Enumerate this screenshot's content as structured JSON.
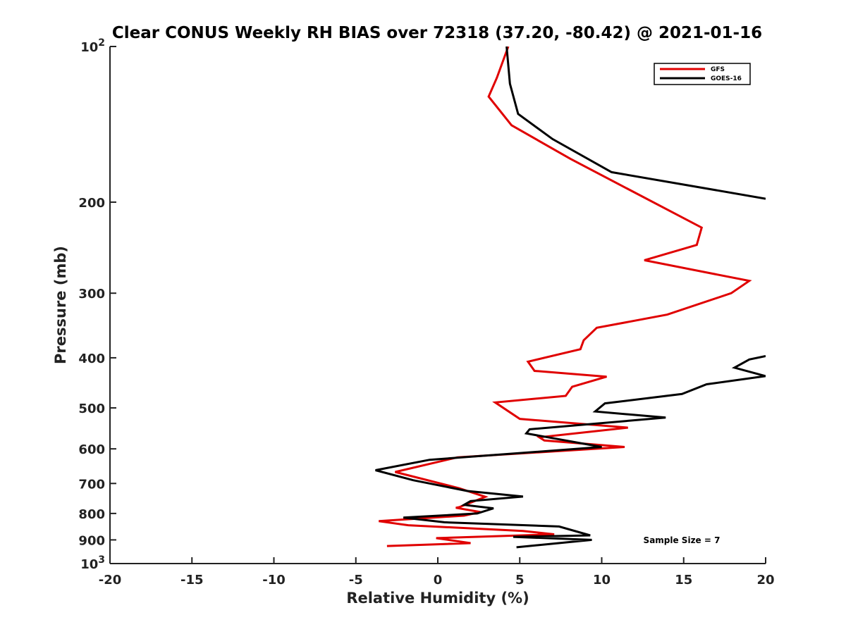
{
  "chart_data": {
    "type": "line",
    "title": "Clear CONUS Weekly RH BIAS over 72318 (37.20, -80.42) @ 2021-01-16",
    "xlabel": "Relative Humidity (%)",
    "ylabel": "Pressure (mb)",
    "xlim": [
      -20,
      20
    ],
    "ylim": [
      100,
      1000
    ],
    "y_scale": "log",
    "y_reversed": true,
    "grid": false,
    "legend_position": "top-right",
    "x_ticks": [
      -20,
      -15,
      -10,
      -5,
      0,
      5,
      10,
      15,
      20
    ],
    "x_tick_labels": [
      "-20",
      "-15",
      "-10",
      "-5",
      "0",
      "5",
      "10",
      "15",
      "20"
    ],
    "y_ticks": [
      {
        "value": 100,
        "label": "10",
        "exp": "2"
      },
      {
        "value": 200,
        "label": "200",
        "exp": ""
      },
      {
        "value": 300,
        "label": "300",
        "exp": ""
      },
      {
        "value": 400,
        "label": "400",
        "exp": ""
      },
      {
        "value": 500,
        "label": "500",
        "exp": ""
      },
      {
        "value": 600,
        "label": "600",
        "exp": ""
      },
      {
        "value": 700,
        "label": "700",
        "exp": ""
      },
      {
        "value": 800,
        "label": "800",
        "exp": ""
      },
      {
        "value": 900,
        "label": "900",
        "exp": ""
      },
      {
        "value": 1000,
        "label": "10",
        "exp": "3"
      }
    ],
    "series": [
      {
        "name": "GFS",
        "color": "#e00000",
        "x": [
          4.3,
          3.6,
          3.1,
          4.5,
          8.1,
          16.1,
          15.8,
          12.6,
          19.0,
          17.9,
          14.0,
          9.7,
          8.9,
          8.7,
          5.5,
          5.9,
          10.3,
          8.2,
          7.8,
          3.5,
          5.0,
          11.6,
          6.2,
          6.5,
          11.4,
          1.2,
          -2.6,
          1.3,
          2.9,
          1.3,
          1.1,
          2.6,
          1.6,
          -3.6,
          -1.8,
          5.2,
          7.1,
          -0.1,
          2.0,
          -3.1
        ],
        "y": [
          100,
          115,
          125,
          142,
          165,
          224,
          242,
          259,
          284,
          300,
          330,
          350,
          370,
          385,
          407,
          424,
          435,
          455,
          474,
          488,
          525,
          546,
          570,
          578,
          595,
          623,
          665,
          715,
          743,
          778,
          780,
          795,
          808,
          828,
          843,
          865,
          878,
          893,
          913,
          925
        ]
      },
      {
        "name": "GOES-16",
        "color": "#000000",
        "x": [
          4.2,
          4.4,
          4.9,
          7.0,
          10.6,
          20.0,
          null,
          20.0,
          19.0,
          18.1,
          20.0,
          16.4,
          14.9,
          10.2,
          9.6,
          13.9,
          5.6,
          5.4,
          10.0,
          -0.5,
          -3.8,
          -1.5,
          1.8,
          5.2,
          2.0,
          1.6,
          3.4,
          2.4,
          -2.1,
          0.4,
          7.4,
          9.3,
          4.6,
          9.4,
          4.8
        ],
        "y": [
          100,
          118,
          135,
          151,
          175,
          197,
          null,
          397,
          403,
          418,
          434,
          450,
          470,
          490,
          508,
          522,
          550,
          560,
          595,
          630,
          660,
          690,
          724,
          742,
          757,
          770,
          782,
          800,
          815,
          832,
          848,
          882,
          888,
          900,
          930
        ]
      }
    ],
    "annotations": [
      "Sample Size = 7"
    ]
  }
}
